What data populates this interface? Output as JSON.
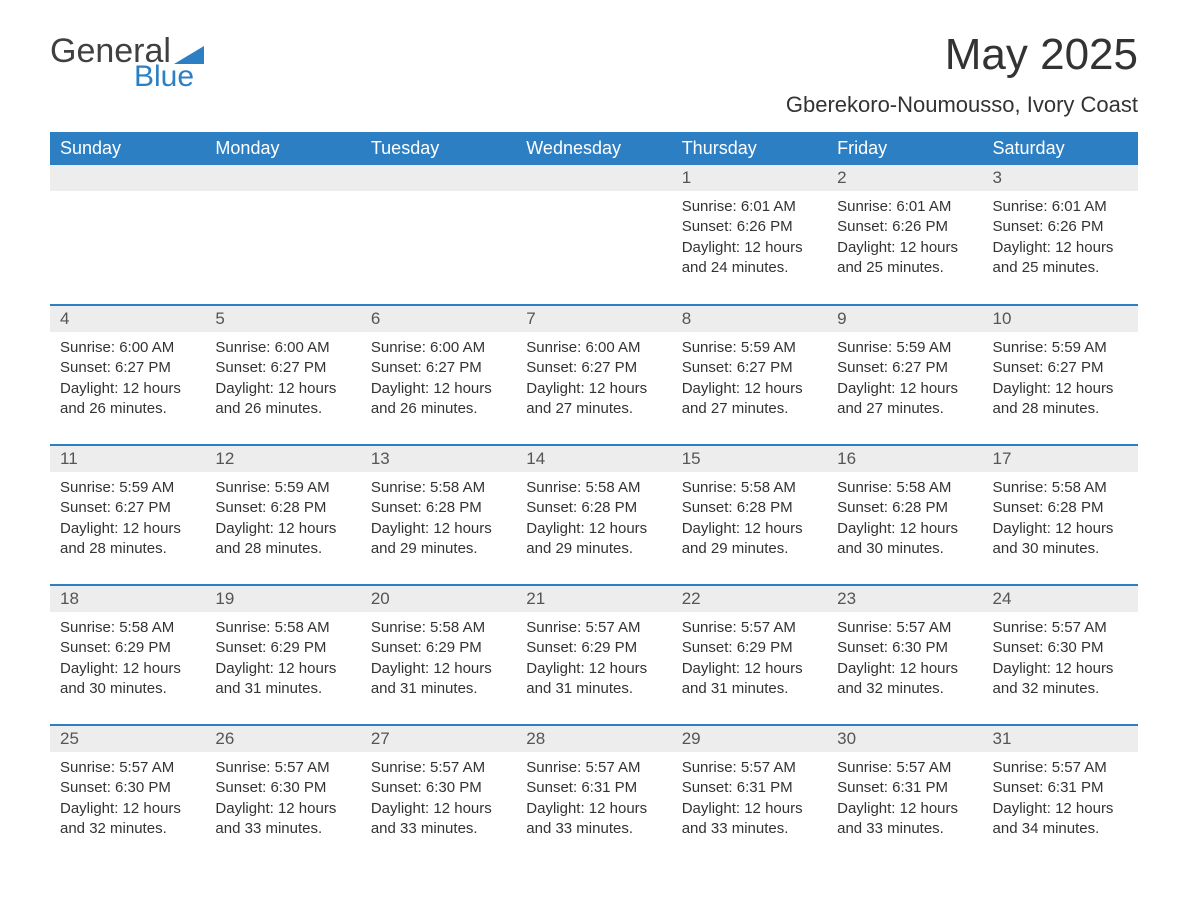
{
  "logo": {
    "text1": "General",
    "text2": "Blue",
    "tri_color": "#2d7fc4"
  },
  "title": "May 2025",
  "subtitle": "Gberekoro-Noumousso, Ivory Coast",
  "colors": {
    "header_bg": "#2d7fc4",
    "header_text": "#ffffff",
    "daynum_bg": "#ededed",
    "daynum_text": "#555555",
    "body_text": "#333333",
    "row_border": "#2d7fc4",
    "page_bg": "#ffffff"
  },
  "fonts": {
    "title_size": 44,
    "subtitle_size": 22,
    "header_size": 18,
    "daynum_size": 17,
    "body_size": 15
  },
  "day_headers": [
    "Sunday",
    "Monday",
    "Tuesday",
    "Wednesday",
    "Thursday",
    "Friday",
    "Saturday"
  ],
  "weeks": [
    [
      null,
      null,
      null,
      null,
      {
        "d": "1",
        "sr": "6:01 AM",
        "ss": "6:26 PM",
        "dl": "12 hours and 24 minutes."
      },
      {
        "d": "2",
        "sr": "6:01 AM",
        "ss": "6:26 PM",
        "dl": "12 hours and 25 minutes."
      },
      {
        "d": "3",
        "sr": "6:01 AM",
        "ss": "6:26 PM",
        "dl": "12 hours and 25 minutes."
      }
    ],
    [
      {
        "d": "4",
        "sr": "6:00 AM",
        "ss": "6:27 PM",
        "dl": "12 hours and 26 minutes."
      },
      {
        "d": "5",
        "sr": "6:00 AM",
        "ss": "6:27 PM",
        "dl": "12 hours and 26 minutes."
      },
      {
        "d": "6",
        "sr": "6:00 AM",
        "ss": "6:27 PM",
        "dl": "12 hours and 26 minutes."
      },
      {
        "d": "7",
        "sr": "6:00 AM",
        "ss": "6:27 PM",
        "dl": "12 hours and 27 minutes."
      },
      {
        "d": "8",
        "sr": "5:59 AM",
        "ss": "6:27 PM",
        "dl": "12 hours and 27 minutes."
      },
      {
        "d": "9",
        "sr": "5:59 AM",
        "ss": "6:27 PM",
        "dl": "12 hours and 27 minutes."
      },
      {
        "d": "10",
        "sr": "5:59 AM",
        "ss": "6:27 PM",
        "dl": "12 hours and 28 minutes."
      }
    ],
    [
      {
        "d": "11",
        "sr": "5:59 AM",
        "ss": "6:27 PM",
        "dl": "12 hours and 28 minutes."
      },
      {
        "d": "12",
        "sr": "5:59 AM",
        "ss": "6:28 PM",
        "dl": "12 hours and 28 minutes."
      },
      {
        "d": "13",
        "sr": "5:58 AM",
        "ss": "6:28 PM",
        "dl": "12 hours and 29 minutes."
      },
      {
        "d": "14",
        "sr": "5:58 AM",
        "ss": "6:28 PM",
        "dl": "12 hours and 29 minutes."
      },
      {
        "d": "15",
        "sr": "5:58 AM",
        "ss": "6:28 PM",
        "dl": "12 hours and 29 minutes."
      },
      {
        "d": "16",
        "sr": "5:58 AM",
        "ss": "6:28 PM",
        "dl": "12 hours and 30 minutes."
      },
      {
        "d": "17",
        "sr": "5:58 AM",
        "ss": "6:28 PM",
        "dl": "12 hours and 30 minutes."
      }
    ],
    [
      {
        "d": "18",
        "sr": "5:58 AM",
        "ss": "6:29 PM",
        "dl": "12 hours and 30 minutes."
      },
      {
        "d": "19",
        "sr": "5:58 AM",
        "ss": "6:29 PM",
        "dl": "12 hours and 31 minutes."
      },
      {
        "d": "20",
        "sr": "5:58 AM",
        "ss": "6:29 PM",
        "dl": "12 hours and 31 minutes."
      },
      {
        "d": "21",
        "sr": "5:57 AM",
        "ss": "6:29 PM",
        "dl": "12 hours and 31 minutes."
      },
      {
        "d": "22",
        "sr": "5:57 AM",
        "ss": "6:29 PM",
        "dl": "12 hours and 31 minutes."
      },
      {
        "d": "23",
        "sr": "5:57 AM",
        "ss": "6:30 PM",
        "dl": "12 hours and 32 minutes."
      },
      {
        "d": "24",
        "sr": "5:57 AM",
        "ss": "6:30 PM",
        "dl": "12 hours and 32 minutes."
      }
    ],
    [
      {
        "d": "25",
        "sr": "5:57 AM",
        "ss": "6:30 PM",
        "dl": "12 hours and 32 minutes."
      },
      {
        "d": "26",
        "sr": "5:57 AM",
        "ss": "6:30 PM",
        "dl": "12 hours and 33 minutes."
      },
      {
        "d": "27",
        "sr": "5:57 AM",
        "ss": "6:30 PM",
        "dl": "12 hours and 33 minutes."
      },
      {
        "d": "28",
        "sr": "5:57 AM",
        "ss": "6:31 PM",
        "dl": "12 hours and 33 minutes."
      },
      {
        "d": "29",
        "sr": "5:57 AM",
        "ss": "6:31 PM",
        "dl": "12 hours and 33 minutes."
      },
      {
        "d": "30",
        "sr": "5:57 AM",
        "ss": "6:31 PM",
        "dl": "12 hours and 33 minutes."
      },
      {
        "d": "31",
        "sr": "5:57 AM",
        "ss": "6:31 PM",
        "dl": "12 hours and 34 minutes."
      }
    ]
  ],
  "labels": {
    "sunrise": "Sunrise: ",
    "sunset": "Sunset: ",
    "daylight": "Daylight: "
  }
}
